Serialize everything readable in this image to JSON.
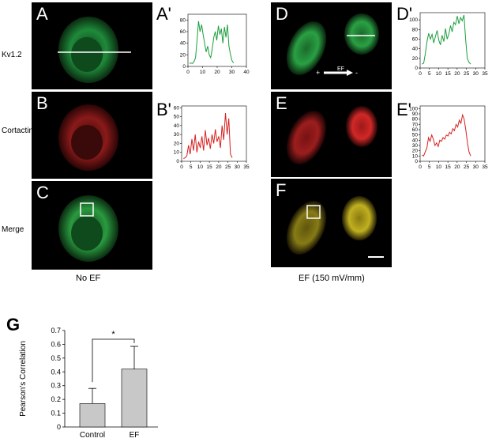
{
  "row_labels": {
    "kv": "Kv1.2",
    "cortactin": "Cortactin",
    "merge": "Merge"
  },
  "panel_letters": {
    "A": "A",
    "B": "B",
    "C": "C",
    "D": "D",
    "E": "E",
    "F": "F"
  },
  "profile_letters": {
    "A": "A'",
    "B": "B'",
    "D": "D'",
    "E": "E'"
  },
  "condition_captions": {
    "left": "No EF",
    "right": "EF (150 mV/mm)"
  },
  "ef_arrow": {
    "plus": "+",
    "minus": "-",
    "label": "EF"
  },
  "colors": {
    "green": "#1a9e3c",
    "red": "#d62020",
    "bar": "#c8c8c8"
  },
  "profiles": [
    {
      "id": "A",
      "color": "#1a9e3c",
      "xticks": [
        0,
        10,
        20,
        30,
        40
      ],
      "yticks": [
        0,
        20,
        40,
        60,
        80
      ],
      "xlim": [
        0,
        40
      ],
      "ylim": [
        0,
        90
      ],
      "y": [
        5,
        6,
        5,
        8,
        15,
        45,
        78,
        60,
        72,
        55,
        40,
        25,
        35,
        20,
        15,
        30,
        50,
        60,
        45,
        70,
        55,
        65,
        40,
        68,
        50,
        72,
        35,
        20,
        10,
        6
      ]
    },
    {
      "id": "B",
      "color": "#d62020",
      "xticks": [
        0,
        5,
        10,
        15,
        20,
        25,
        30,
        35
      ],
      "yticks": [
        0,
        10,
        20,
        30,
        40,
        50,
        60
      ],
      "xlim": [
        0,
        35
      ],
      "ylim": [
        0,
        62
      ],
      "y": [
        3,
        4,
        6,
        18,
        8,
        25,
        12,
        30,
        10,
        22,
        15,
        28,
        12,
        35,
        18,
        26,
        14,
        30,
        20,
        36,
        22,
        28,
        15,
        40,
        24,
        54,
        30,
        48,
        8,
        4
      ]
    },
    {
      "id": "D",
      "color": "#1a9e3c",
      "xticks": [
        0,
        5,
        10,
        15,
        20,
        25,
        30,
        35
      ],
      "yticks": [
        0,
        20,
        40,
        60,
        80,
        100
      ],
      "xlim": [
        0,
        35
      ],
      "ylim": [
        0,
        115
      ],
      "y": [
        8,
        10,
        30,
        55,
        72,
        60,
        70,
        52,
        65,
        78,
        58,
        48,
        68,
        55,
        82,
        60,
        70,
        88,
        75,
        95,
        90,
        108,
        92,
        105,
        98,
        110,
        60,
        20,
        12,
        8
      ]
    },
    {
      "id": "E",
      "color": "#d62020",
      "xticks": [
        0,
        5,
        10,
        15,
        20,
        25,
        30,
        35
      ],
      "yticks": [
        0,
        10,
        20,
        30,
        40,
        50,
        60,
        70,
        80,
        90,
        100
      ],
      "xlim": [
        0,
        35
      ],
      "ylim": [
        0,
        105
      ],
      "y": [
        12,
        10,
        18,
        25,
        45,
        38,
        50,
        42,
        30,
        35,
        28,
        40,
        38,
        45,
        42,
        50,
        48,
        55,
        52,
        62,
        58,
        70,
        65,
        78,
        72,
        88,
        80,
        60,
        35,
        18,
        10
      ]
    }
  ],
  "chart_data": {
    "type": "bar",
    "panel_letter": "G",
    "categories": [
      "Control",
      "EF"
    ],
    "values": [
      0.17,
      0.42
    ],
    "errors": [
      0.11,
      0.165
    ],
    "ylabel": "Pearson's Correlation",
    "ylim": [
      0,
      0.7
    ],
    "yticks": [
      "0",
      "0.1",
      "0.2",
      "0.3",
      "0.4",
      "0.5",
      "0.6",
      "0.7"
    ],
    "significance": "*"
  }
}
